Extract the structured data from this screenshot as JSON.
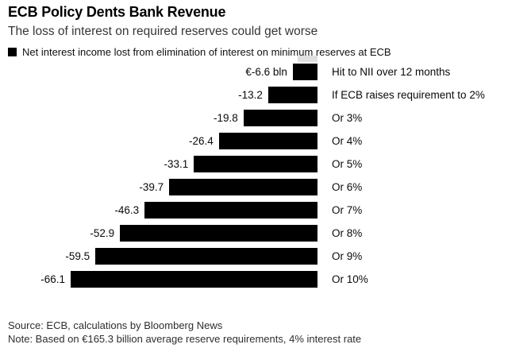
{
  "header": {
    "title": "ECB Policy Dents Bank Revenue",
    "subtitle": "The loss of interest on required reserves could get worse"
  },
  "legend": {
    "marker_color": "#000000",
    "label": "Net interest income lost from elimination of interest on minimum reserves at ECB"
  },
  "chart_data": {
    "type": "bar",
    "orientation": "horizontal",
    "title": "Net interest income lost from elimination of interest on minimum reserves at ECB",
    "unit": "€ bln",
    "bar_color": "#000000",
    "xlim": [
      -70,
      0
    ],
    "grid": false,
    "legend_position": "top-left",
    "categories": [
      "Hit to NII over 12 months",
      "If ECB raises requirement to 2%",
      "Or 3%",
      "Or 4%",
      "Or 5%",
      "Or 6%",
      "Or 7%",
      "Or 8%",
      "Or 9%",
      "Or 10%"
    ],
    "values": [
      -6.6,
      -13.2,
      -19.8,
      -26.4,
      -33.1,
      -39.7,
      -46.3,
      -52.9,
      -59.5,
      -66.1
    ],
    "rows": [
      {
        "value": -6.6,
        "value_label": "€-6.6 bln",
        "category": "Hit to NII over 12 months"
      },
      {
        "value": -13.2,
        "value_label": "-13.2",
        "category": "If ECB raises requirement to 2%"
      },
      {
        "value": -19.8,
        "value_label": "-19.8",
        "category": "Or 3%"
      },
      {
        "value": -26.4,
        "value_label": "-26.4",
        "category": "Or 4%"
      },
      {
        "value": -33.1,
        "value_label": "-33.1",
        "category": "Or 5%"
      },
      {
        "value": -39.7,
        "value_label": "-39.7",
        "category": "Or 6%"
      },
      {
        "value": -46.3,
        "value_label": "-46.3",
        "category": "Or 7%"
      },
      {
        "value": -52.9,
        "value_label": "-52.9",
        "category": "Or 8%"
      },
      {
        "value": -59.5,
        "value_label": "-59.5",
        "category": "Or 9%"
      },
      {
        "value": -66.1,
        "value_label": "-66.1",
        "category": "Or 10%"
      }
    ]
  },
  "footer": {
    "source": "Source: ECB, calculations by Bloomberg News",
    "note": "Note: Based on €165.3 billion average reserve requirements, 4% interest rate"
  }
}
